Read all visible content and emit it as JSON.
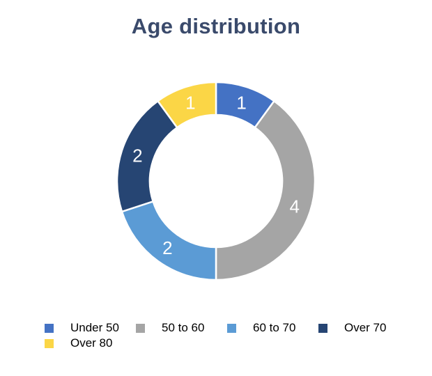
{
  "page": {
    "background": "#FFFFFF"
  },
  "chart_data": {
    "type": "pie",
    "subtype": "donut",
    "title": "Age distribution",
    "categories": [
      "Under 50",
      "50 to 60",
      "60 to 70",
      "Over 70",
      "Over 80"
    ],
    "values": [
      1,
      4,
      2,
      2,
      1
    ],
    "data_labels": [
      "1",
      "4",
      "2",
      "2",
      "1"
    ],
    "colors": [
      "#4472C4",
      "#A5A5A5",
      "#5B9BD5",
      "#264573",
      "#FBD646"
    ],
    "total": 10,
    "start_angle_deg": 0,
    "direction": "clockwise",
    "hole_ratio": 0.67,
    "legend_position": "bottom",
    "grid": "off",
    "title_color": "#3A4A6B",
    "label_color": "#FFFFFF",
    "legend_text_color": "#000000",
    "segment_border_color": "#FFFFFF"
  }
}
